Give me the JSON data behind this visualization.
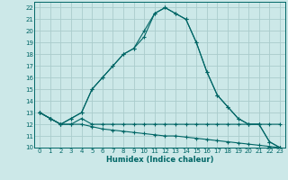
{
  "title": "",
  "xlabel": "Humidex (Indice chaleur)",
  "background_color": "#cce8e8",
  "grid_color": "#aacccc",
  "line_color": "#006666",
  "xlim": [
    -0.5,
    23.5
  ],
  "ylim": [
    10,
    22.5
  ],
  "xticks": [
    0,
    1,
    2,
    3,
    4,
    5,
    6,
    7,
    8,
    9,
    10,
    11,
    12,
    13,
    14,
    15,
    16,
    17,
    18,
    19,
    20,
    21,
    22,
    23
  ],
  "yticks": [
    10,
    11,
    12,
    13,
    14,
    15,
    16,
    17,
    18,
    19,
    20,
    21,
    22
  ],
  "series": [
    [
      13.0,
      12.5,
      12.0,
      12.0,
      12.5,
      12.0,
      12.0,
      12.0,
      12.0,
      12.0,
      12.0,
      12.0,
      12.0,
      12.0,
      12.0,
      12.0,
      12.0,
      12.0,
      12.0,
      12.0,
      12.0,
      12.0,
      12.0,
      12.0
    ],
    [
      13.0,
      12.5,
      12.0,
      12.0,
      12.0,
      11.8,
      11.6,
      11.5,
      11.4,
      11.3,
      11.2,
      11.1,
      11.0,
      11.0,
      10.9,
      10.8,
      10.7,
      10.6,
      10.5,
      10.4,
      10.3,
      10.2,
      10.1,
      10.0
    ],
    [
      13.0,
      12.5,
      12.0,
      12.5,
      13.0,
      15.0,
      16.0,
      17.0,
      18.0,
      18.5,
      20.0,
      21.5,
      22.0,
      21.5,
      21.0,
      19.0,
      16.5,
      14.5,
      13.5,
      12.5,
      12.0,
      12.0,
      10.5,
      10.0
    ],
    [
      13.0,
      12.5,
      12.0,
      12.5,
      13.0,
      15.0,
      16.0,
      17.0,
      18.0,
      18.5,
      19.5,
      21.5,
      22.0,
      21.5,
      21.0,
      19.0,
      16.5,
      14.5,
      13.5,
      12.5,
      12.0,
      12.0,
      10.5,
      10.0
    ]
  ],
  "x_values": [
    0,
    1,
    2,
    3,
    4,
    5,
    6,
    7,
    8,
    9,
    10,
    11,
    12,
    13,
    14,
    15,
    16,
    17,
    18,
    19,
    20,
    21,
    22,
    23
  ]
}
